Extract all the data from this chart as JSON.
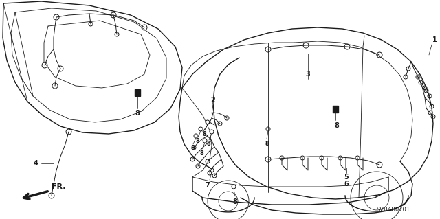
{
  "bg_color": "#ffffff",
  "line_color": "#1a1a1a",
  "label_color": "#1a1a1a",
  "diagram_code": "SVB4B0701",
  "font_size_label": 7,
  "font_size_code": 6,
  "lw_body": 1.0,
  "lw_inner": 0.6,
  "lw_wire": 0.7,
  "lw_thin": 0.5
}
